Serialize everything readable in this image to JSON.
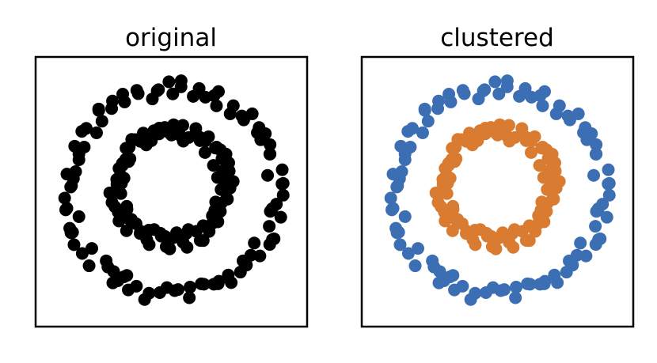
{
  "chart_data": [
    {
      "type": "scatter",
      "title": "original",
      "xlim": [
        -1.15,
        1.15
      ],
      "ylim": [
        -1.15,
        1.15
      ],
      "axes_visible": false,
      "grid": false,
      "series": [
        {
          "color": "#000000",
          "points": []
        }
      ]
    },
    {
      "type": "scatter",
      "title": "clustered",
      "xlim": [
        -1.15,
        1.15
      ],
      "ylim": [
        -1.15,
        1.15
      ],
      "axes_visible": false,
      "grid": false,
      "series": [
        {
          "color": "#3c6eb4",
          "points": []
        },
        {
          "color": "#d97b30",
          "points": []
        }
      ]
    }
  ],
  "generator": {
    "outer": {
      "count": 100,
      "r": 0.88,
      "r_jitter": 0.07,
      "center": [
        0.01,
        0.0
      ]
    },
    "inner": {
      "count": 100,
      "r": 0.47,
      "r_jitter": 0.075,
      "center": [
        0.0,
        0.05
      ]
    },
    "seed": 7
  }
}
